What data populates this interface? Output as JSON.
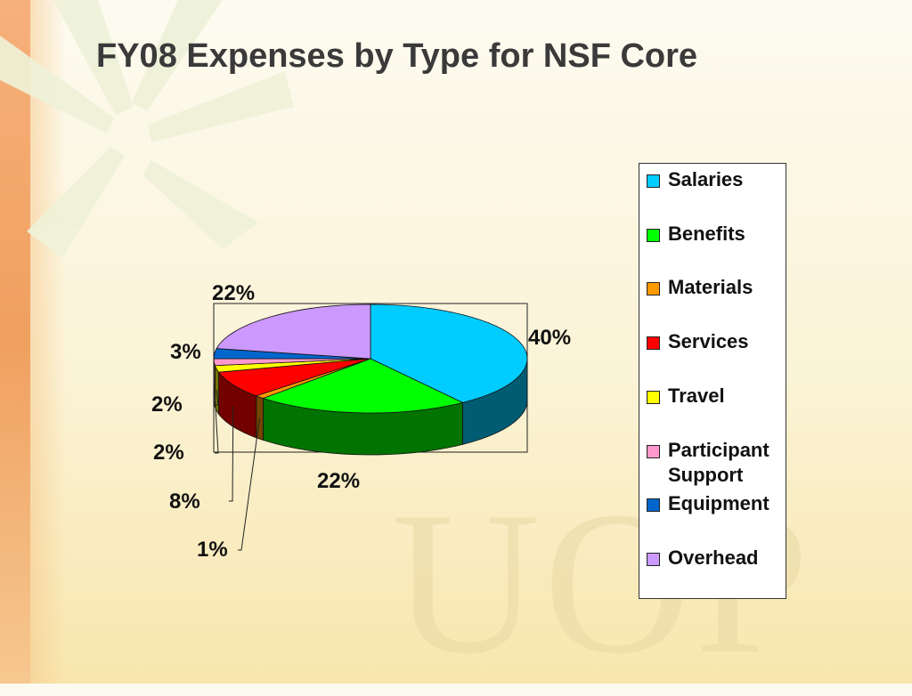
{
  "slide": {
    "title": "FY08 Expenses by Type for NSF Core",
    "watermark": "UOP"
  },
  "chart_data": {
    "type": "pie",
    "title": "FY08 Expenses by Type for NSF Core",
    "categories": [
      "Salaries",
      "Benefits",
      "Materials",
      "Services",
      "Travel",
      "Participant Support",
      "Equipment",
      "Overhead"
    ],
    "values": [
      40,
      22,
      1,
      8,
      2,
      2,
      3,
      22
    ],
    "data_labels": [
      "40%",
      "22%",
      "1%",
      "8%",
      "2%",
      "2%",
      "3%",
      "22%"
    ],
    "colors": [
      "#00ccff",
      "#00ff00",
      "#ff9900",
      "#ff0000",
      "#ffff00",
      "#ff99cc",
      "#0066cc",
      "#cc99ff"
    ],
    "legend_position": "right",
    "three_d": true
  },
  "legend": {
    "items": [
      {
        "label": "Salaries",
        "color": "#00ccff"
      },
      {
        "label": "Benefits",
        "color": "#00ff00"
      },
      {
        "label": "Materials",
        "color": "#ff9900"
      },
      {
        "label": "Services",
        "color": "#ff0000"
      },
      {
        "label": "Travel",
        "color": "#ffff00"
      },
      {
        "label": "Participant Support",
        "color": "#ff99cc"
      },
      {
        "label": "Equipment",
        "color": "#0066cc"
      },
      {
        "label": "Overhead",
        "color": "#cc99ff"
      }
    ]
  }
}
